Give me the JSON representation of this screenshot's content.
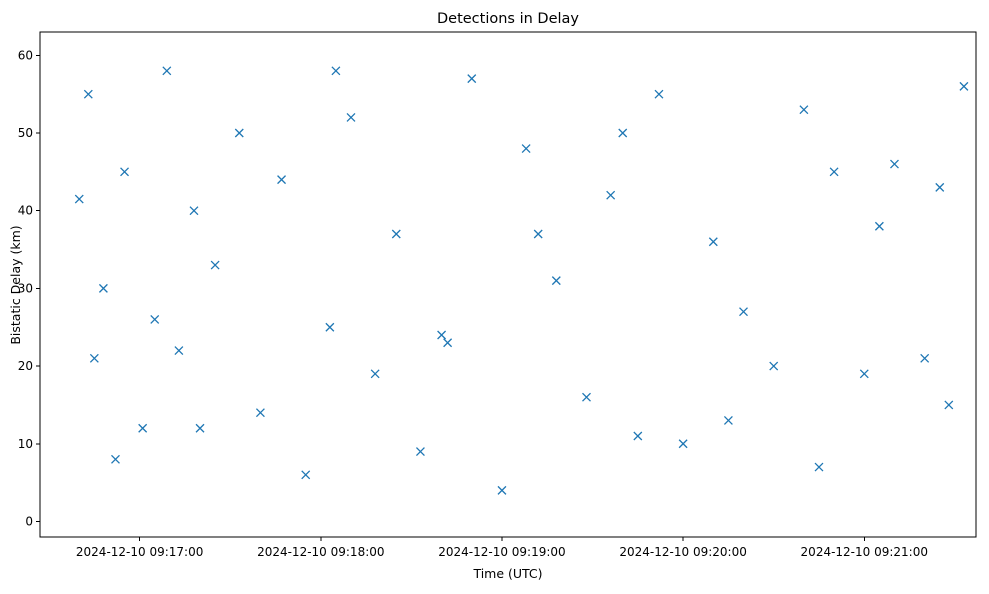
{
  "chart_data": {
    "type": "scatter",
    "title": "Detections in Delay",
    "xlabel": "Time (UTC)",
    "ylabel": "Bistatic Delay (km)",
    "x_unit": "time",
    "xlim": [
      "2024-12-10 09:16:27",
      "2024-12-10 09:21:37"
    ],
    "ylim": [
      -2,
      63
    ],
    "x_ticks": [
      {
        "value": "2024-12-10 09:17:00",
        "label": "2024-12-10 09:17:00"
      },
      {
        "value": "2024-12-10 09:18:00",
        "label": "2024-12-10 09:18:00"
      },
      {
        "value": "2024-12-10 09:19:00",
        "label": "2024-12-10 09:19:00"
      },
      {
        "value": "2024-12-10 09:20:00",
        "label": "2024-12-10 09:20:00"
      },
      {
        "value": "2024-12-10 09:21:00",
        "label": "2024-12-10 09:21:00"
      }
    ],
    "y_ticks": [
      0,
      10,
      20,
      30,
      40,
      50,
      60
    ],
    "grid": false,
    "legend": "none",
    "marker": "x",
    "marker_color": "#1f77b4",
    "series": [
      {
        "x": [
          "2024-12-10 09:16:40",
          "2024-12-10 09:16:43",
          "2024-12-10 09:16:48",
          "2024-12-10 09:16:52",
          "2024-12-10 09:16:55",
          "2024-12-10 09:17:01",
          "2024-12-10 09:17:05",
          "2024-12-10 09:17:09",
          "2024-12-10 09:17:13",
          "2024-12-10 09:17:18",
          "2024-12-10 09:17:25",
          "2024-12-10 09:17:33",
          "2024-12-10 09:17:40",
          "2024-12-10 09:17:47",
          "2024-12-10 09:17:55",
          "2024-12-10 09:18:03",
          "2024-12-10 09:18:10",
          "2024-12-10 09:18:18",
          "2024-12-10 09:18:25",
          "2024-12-10 09:18:33",
          "2024-12-10 09:18:42",
          "2024-12-10 09:18:50",
          "2024-12-10 09:19:00",
          "2024-12-10 09:19:08",
          "2024-12-10 09:19:18",
          "2024-12-10 09:19:28",
          "2024-12-10 09:19:36",
          "2024-12-10 09:19:45",
          "2024-12-10 09:19:52",
          "2024-12-10 09:20:00",
          "2024-12-10 09:20:10",
          "2024-12-10 09:20:20",
          "2024-12-10 09:20:30",
          "2024-12-10 09:20:40",
          "2024-12-10 09:20:50",
          "2024-12-10 09:21:00",
          "2024-12-10 09:21:10",
          "2024-12-10 09:21:20",
          "2024-12-10 09:21:28",
          "2024-12-10 09:21:33",
          "2024-12-10 09:16:45",
          "2024-12-10 09:17:20",
          "2024-12-10 09:18:05",
          "2024-12-10 09:18:40",
          "2024-12-10 09:19:12",
          "2024-12-10 09:19:40",
          "2024-12-10 09:20:15",
          "2024-12-10 09:20:45",
          "2024-12-10 09:21:05",
          "2024-12-10 09:21:25"
        ],
        "y": [
          41.5,
          55,
          30,
          8,
          45,
          12,
          26,
          58,
          22,
          40,
          33,
          50,
          14,
          44,
          6,
          25,
          52,
          19,
          37,
          9,
          23,
          57,
          4,
          48,
          31,
          16,
          42,
          11,
          55,
          10,
          36,
          27,
          20,
          53,
          45,
          19,
          46,
          21,
          15,
          56,
          21,
          12,
          58,
          24,
          37,
          50,
          13,
          7,
          38,
          43
        ]
      }
    ]
  }
}
